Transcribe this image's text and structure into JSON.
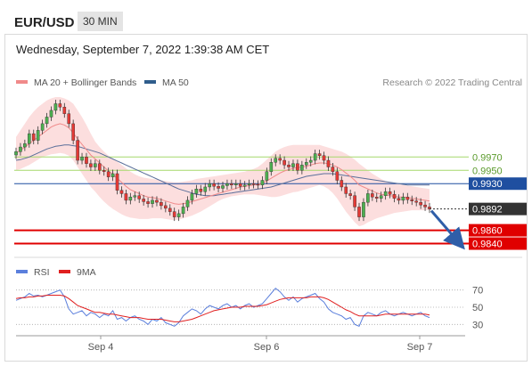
{
  "header": {
    "symbol": "EUR/USD",
    "timeframe": "30 MIN"
  },
  "datetime": "Wednesday, September 7, 2022 1:39:38 AM CET",
  "legend": {
    "items": [
      {
        "label": "MA 20 + Bollinger Bands",
        "color": "#f08a8a"
      },
      {
        "label": "MA 50",
        "color": "#2f5d8c"
      }
    ],
    "credit": "Research © 2022 Trading Central"
  },
  "rsi_legend": [
    {
      "label": "RSI",
      "color": "#5b7fdc"
    },
    {
      "label": "9MA",
      "color": "#e02020"
    }
  ],
  "colors": {
    "up": "#4caf50",
    "down": "#e53935",
    "wick": "#333333",
    "band_fill": "#fbd0d0",
    "ma20": "#f08a8a",
    "ma50": "#5a6f9a",
    "resistance": "#a6d86c",
    "pivot": "#1f4fa0",
    "support": "#e00000",
    "arrow": "#2f5ea8",
    "rsi": "#5b7fdc",
    "rsi_ma": "#e02020"
  },
  "chart_data": [
    {
      "type": "candlestick",
      "title": "",
      "x_ticks": [
        "Sep 4",
        "Sep 6",
        "Sep 7"
      ],
      "ylim": [
        0.9818,
        1.0072
      ],
      "levels": [
        {
          "value": 0.997,
          "label": "0.9970",
          "kind": "resistance"
        },
        {
          "value": 0.995,
          "label": "0.9950",
          "kind": "resistance"
        },
        {
          "value": 0.993,
          "label": "0.9930",
          "kind": "pivot"
        },
        {
          "value": 0.986,
          "label": "0.9860",
          "kind": "support"
        },
        {
          "value": 0.984,
          "label": "0.9840",
          "kind": "support"
        }
      ],
      "last_price": {
        "value": 0.9892,
        "label": "0.9892"
      },
      "close": [
        0.9978,
        0.9985,
        0.999,
        1.0005,
        0.9995,
        1.001,
        1.002,
        1.003,
        1.004,
        1.005,
        1.0045,
        1.0035,
        1.002,
        0.9995,
        0.9965,
        0.997,
        0.996,
        0.9955,
        0.996,
        0.995,
        0.9948,
        0.994,
        0.9945,
        0.992,
        0.9915,
        0.9905,
        0.991,
        0.9912,
        0.9907,
        0.9903,
        0.99,
        0.9905,
        0.9902,
        0.9897,
        0.9893,
        0.9888,
        0.988,
        0.9885,
        0.9895,
        0.9905,
        0.9915,
        0.9922,
        0.9918,
        0.9925,
        0.993,
        0.9926,
        0.9923,
        0.9927,
        0.993,
        0.9928,
        0.993,
        0.9926,
        0.9928,
        0.993,
        0.9929,
        0.9928,
        0.9935,
        0.9948,
        0.9962,
        0.9968,
        0.9965,
        0.9958,
        0.9955,
        0.996,
        0.995,
        0.9958,
        0.9962,
        0.9965,
        0.9975,
        0.9972,
        0.9965,
        0.9955,
        0.9948,
        0.9935,
        0.9925,
        0.9915,
        0.9912,
        0.9895,
        0.988,
        0.9902,
        0.9915,
        0.991,
        0.9908,
        0.9912,
        0.9918,
        0.9914,
        0.9908,
        0.9905,
        0.991,
        0.9906,
        0.9904,
        0.9902,
        0.9898,
        0.9895,
        0.9892
      ],
      "ma20": [
        0.9976,
        0.998,
        0.9985,
        0.999,
        0.9995,
        1.0,
        1.0005,
        1.001,
        1.0015,
        1.0018,
        1.002,
        1.0018,
        1.0014,
        1.0006,
        0.9997,
        0.9989,
        0.9981,
        0.9973,
        0.9967,
        0.9961,
        0.9955,
        0.9949,
        0.9944,
        0.9938,
        0.9932,
        0.9926,
        0.9921,
        0.9918,
        0.9915,
        0.9912,
        0.991,
        0.9909,
        0.9908,
        0.9906,
        0.9904,
        0.9902,
        0.99,
        0.9899,
        0.99,
        0.9901,
        0.9903,
        0.9905,
        0.9907,
        0.9909,
        0.9911,
        0.9913,
        0.9915,
        0.9917,
        0.9919,
        0.9921,
        0.9923,
        0.9925,
        0.9926,
        0.9927,
        0.9928,
        0.9929,
        0.9931,
        0.9934,
        0.9938,
        0.9942,
        0.9946,
        0.9949,
        0.9951,
        0.9953,
        0.9954,
        0.9955,
        0.9956,
        0.9958,
        0.996,
        0.9961,
        0.9961,
        0.996,
        0.9958,
        0.9955,
        0.9951,
        0.9946,
        0.9941,
        0.9935,
        0.9928,
        0.9925,
        0.9922,
        0.9919,
        0.9916,
        0.9914,
        0.9913,
        0.9912,
        0.9911,
        0.991,
        0.991,
        0.9909,
        0.9908,
        0.9907,
        0.9906,
        0.9905,
        0.9904
      ],
      "upper": [
        1.0,
        1.001,
        1.002,
        1.003,
        1.0038,
        1.0045,
        1.005,
        1.0055,
        1.0058,
        1.006,
        1.006,
        1.0058,
        1.0055,
        1.005,
        1.004,
        1.003,
        1.0018,
        1.0005,
        0.9993,
        0.9985,
        0.9978,
        0.9972,
        0.9967,
        0.9963,
        0.9958,
        0.9953,
        0.9948,
        0.9944,
        0.9941,
        0.9939,
        0.9938,
        0.9937,
        0.9936,
        0.9935,
        0.9934,
        0.9933,
        0.9932,
        0.9932,
        0.9933,
        0.9934,
        0.9935,
        0.9937,
        0.9938,
        0.9939,
        0.994,
        0.9941,
        0.9942,
        0.9943,
        0.9944,
        0.9945,
        0.9946,
        0.9947,
        0.9948,
        0.995,
        0.9952,
        0.9955,
        0.996,
        0.9966,
        0.9972,
        0.9978,
        0.9982,
        0.9985,
        0.9987,
        0.9988,
        0.9988,
        0.9988,
        0.9988,
        0.9988,
        0.9988,
        0.9988,
        0.9986,
        0.9984,
        0.9982,
        0.998,
        0.9978,
        0.9975,
        0.9971,
        0.9966,
        0.996,
        0.9955,
        0.995,
        0.9945,
        0.9941,
        0.9937,
        0.9934,
        0.9932,
        0.993,
        0.9929,
        0.9928,
        0.9927,
        0.9926,
        0.9925,
        0.9924,
        0.9923,
        0.9922
      ],
      "lower": [
        0.995,
        0.9952,
        0.9955,
        0.9958,
        0.9962,
        0.9966,
        0.997,
        0.9972,
        0.9974,
        0.9975,
        0.9976,
        0.9975,
        0.9972,
        0.9965,
        0.9955,
        0.9945,
        0.9935,
        0.9925,
        0.9918,
        0.991,
        0.9903,
        0.9897,
        0.9892,
        0.9888,
        0.9884,
        0.9881,
        0.9879,
        0.9878,
        0.9877,
        0.9877,
        0.9877,
        0.9878,
        0.9878,
        0.9878,
        0.9877,
        0.9876,
        0.9875,
        0.9876,
        0.9878,
        0.988,
        0.9882,
        0.9885,
        0.9888,
        0.9892,
        0.9896,
        0.99,
        0.9904,
        0.9907,
        0.9909,
        0.9911,
        0.9912,
        0.9913,
        0.9914,
        0.9914,
        0.9914,
        0.9913,
        0.9912,
        0.9911,
        0.991,
        0.991,
        0.9911,
        0.9913,
        0.9915,
        0.9917,
        0.9918,
        0.992,
        0.9922,
        0.9924,
        0.9926,
        0.9928,
        0.9926,
        0.9922,
        0.9916,
        0.9908,
        0.9898,
        0.9888,
        0.988,
        0.9872,
        0.9866,
        0.9868,
        0.9872,
        0.9875,
        0.9878,
        0.988,
        0.9882,
        0.9884,
        0.9886,
        0.9887,
        0.9888,
        0.9889,
        0.989,
        0.989,
        0.989,
        0.989,
        0.989
      ],
      "ma50": [
        0.9965,
        0.9966,
        0.9968,
        0.997,
        0.9973,
        0.9976,
        0.9979,
        0.9982,
        0.9984,
        0.9986,
        0.9987,
        0.9988,
        0.9988,
        0.9987,
        0.9986,
        0.9984,
        0.9982,
        0.998,
        0.9978,
        0.9976,
        0.9973,
        0.997,
        0.9967,
        0.9964,
        0.9961,
        0.9958,
        0.9955,
        0.9952,
        0.9949,
        0.9946,
        0.9943,
        0.994,
        0.9937,
        0.9934,
        0.9931,
        0.9928,
        0.9925,
        0.9922,
        0.992,
        0.9918,
        0.9916,
        0.9914,
        0.9913,
        0.9912,
        0.9912,
        0.9912,
        0.9913,
        0.9914,
        0.9915,
        0.9916,
        0.9917,
        0.9918,
        0.9919,
        0.992,
        0.9921,
        0.9922,
        0.9923,
        0.9924,
        0.9925,
        0.9927,
        0.9929,
        0.9931,
        0.9933,
        0.9935,
        0.9937,
        0.9939,
        0.9941,
        0.9942,
        0.9943,
        0.9944,
        0.9945,
        0.9945,
        0.9945,
        0.9944,
        0.9943,
        0.9942,
        0.9941,
        0.994,
        0.9939,
        0.9938,
        0.9937,
        0.9936,
        0.9935,
        0.9934,
        0.9933,
        0.9932,
        0.9931,
        0.993,
        0.9929,
        0.9928,
        0.9928,
        0.9928,
        0.9928,
        0.9928,
        0.9928
      ]
    },
    {
      "type": "line",
      "title": "",
      "ylim": [
        20,
        80
      ],
      "y_ticks": [
        70,
        50,
        30
      ],
      "series": [
        {
          "name": "RSI",
          "values": [
            58,
            60,
            62,
            66,
            63,
            64,
            62,
            64,
            66,
            68,
            70,
            62,
            48,
            42,
            44,
            46,
            40,
            44,
            42,
            38,
            42,
            40,
            46,
            36,
            38,
            34,
            38,
            40,
            36,
            34,
            30,
            36,
            34,
            38,
            32,
            30,
            28,
            32,
            40,
            44,
            48,
            46,
            42,
            48,
            52,
            50,
            48,
            52,
            54,
            50,
            52,
            48,
            52,
            54,
            50,
            52,
            54,
            60,
            66,
            72,
            68,
            62,
            58,
            62,
            56,
            60,
            62,
            64,
            66,
            60,
            56,
            48,
            44,
            42,
            40,
            36,
            38,
            30,
            28,
            40,
            44,
            42,
            40,
            44,
            46,
            42,
            40,
            42,
            44,
            42,
            40,
            42,
            44,
            40,
            38
          ]
        },
        {
          "name": "9MA",
          "values": [
            60,
            61,
            61,
            62,
            62,
            63,
            63,
            64,
            64,
            64,
            64,
            63,
            60,
            56,
            52,
            50,
            48,
            46,
            44,
            44,
            43,
            42,
            42,
            41,
            40,
            39,
            38,
            38,
            38,
            37,
            36,
            36,
            36,
            36,
            35,
            34,
            33,
            33,
            34,
            35,
            36,
            38,
            40,
            42,
            44,
            46,
            47,
            48,
            49,
            50,
            50,
            50,
            51,
            51,
            51,
            51,
            52,
            53,
            55,
            57,
            59,
            60,
            61,
            61,
            61,
            61,
            61,
            62,
            62,
            62,
            61,
            59,
            56,
            53,
            50,
            47,
            45,
            42,
            40,
            40,
            40,
            40,
            40,
            41,
            42,
            42,
            42,
            42,
            42,
            42,
            42,
            42,
            42,
            42,
            41
          ]
        }
      ]
    }
  ]
}
